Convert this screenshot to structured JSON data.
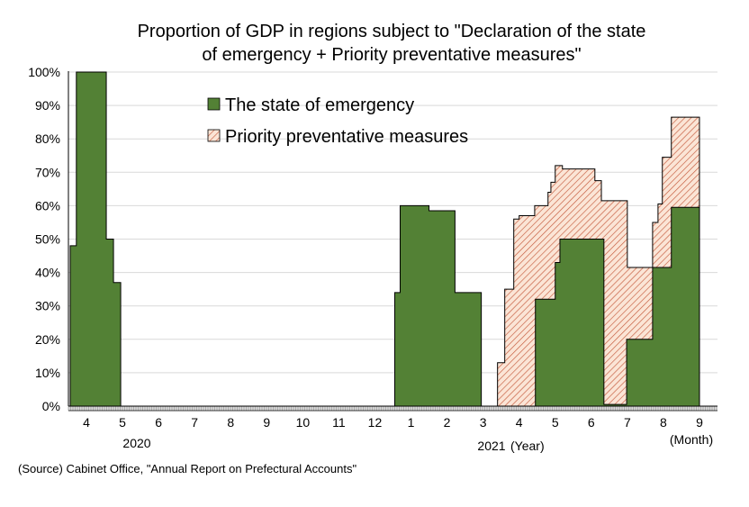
{
  "chart_data": {
    "type": "area",
    "title": "Proportion of GDP in regions subject to \"Declaration of the state",
    "title_line2": "of emergency + Priority preventative measures\"",
    "y_ticks": [
      "0%",
      "10%",
      "20%",
      "30%",
      "40%",
      "50%",
      "60%",
      "70%",
      "80%",
      "90%",
      "100%"
    ],
    "ylim": [
      0,
      100
    ],
    "x_ticks": [
      "4",
      "5",
      "6",
      "7",
      "8",
      "9",
      "10",
      "11",
      "12",
      "1",
      "2",
      "3",
      "4",
      "5",
      "6",
      "7",
      "8",
      "9"
    ],
    "x_year_labels": [
      "2020",
      "2021"
    ],
    "x_year_unit": "(Year)",
    "x_month_unit": "(Month)",
    "legend_position": "top-center",
    "source": "(Source) Cabinet Office, \"Annual Report on Prefectural Accounts\"",
    "colors": {
      "emergency": "#538135",
      "priority_hatch": "#c55a3c",
      "priority_bg": "#fbe5d6"
    },
    "series": [
      {
        "name": "The state of emergency",
        "step_points": [
          [
            0.05,
            0
          ],
          [
            0.05,
            48
          ],
          [
            0.22,
            48
          ],
          [
            0.22,
            100
          ],
          [
            1.05,
            100
          ],
          [
            1.05,
            50
          ],
          [
            1.25,
            50
          ],
          [
            1.25,
            37
          ],
          [
            1.45,
            37
          ],
          [
            1.45,
            0
          ],
          [
            9.05,
            0
          ],
          [
            9.05,
            34
          ],
          [
            9.2,
            34
          ],
          [
            9.2,
            60
          ],
          [
            10.0,
            60
          ],
          [
            10.0,
            58.5
          ],
          [
            10.72,
            58.5
          ],
          [
            10.72,
            34
          ],
          [
            11.45,
            34
          ],
          [
            11.45,
            0
          ],
          [
            12.95,
            0
          ],
          [
            12.95,
            32
          ],
          [
            13.5,
            32
          ],
          [
            13.5,
            43
          ],
          [
            13.63,
            43
          ],
          [
            13.63,
            50
          ],
          [
            14.85,
            50
          ],
          [
            14.85,
            0.5
          ],
          [
            15.48,
            0.5
          ],
          [
            15.48,
            20
          ],
          [
            16.2,
            20
          ],
          [
            16.2,
            41.5
          ],
          [
            16.72,
            41.5
          ],
          [
            16.72,
            59.5
          ],
          [
            17.5,
            59.5
          ],
          [
            17.5,
            0
          ]
        ]
      },
      {
        "name": "Priority preventative measures",
        "step_points": [
          [
            11.9,
            0
          ],
          [
            11.9,
            13
          ],
          [
            12.1,
            13
          ],
          [
            12.1,
            35
          ],
          [
            12.35,
            35
          ],
          [
            12.35,
            56
          ],
          [
            12.5,
            56
          ],
          [
            12.5,
            57
          ],
          [
            12.93,
            57
          ],
          [
            12.93,
            60
          ],
          [
            13.3,
            60
          ],
          [
            13.3,
            64
          ],
          [
            13.38,
            64
          ],
          [
            13.38,
            67
          ],
          [
            13.5,
            67
          ],
          [
            13.5,
            72
          ],
          [
            13.7,
            72
          ],
          [
            13.7,
            71
          ],
          [
            14.6,
            71
          ],
          [
            14.6,
            67.5
          ],
          [
            14.78,
            67.5
          ],
          [
            14.78,
            61.5
          ],
          [
            15.5,
            61.5
          ],
          [
            15.5,
            41.5
          ],
          [
            16.2,
            41.5
          ],
          [
            16.2,
            55
          ],
          [
            16.35,
            55
          ],
          [
            16.35,
            60.5
          ],
          [
            16.47,
            60.5
          ],
          [
            16.47,
            74.5
          ],
          [
            16.72,
            74.5
          ],
          [
            16.72,
            86.5
          ],
          [
            17.5,
            86.5
          ],
          [
            17.5,
            0
          ]
        ]
      }
    ]
  }
}
